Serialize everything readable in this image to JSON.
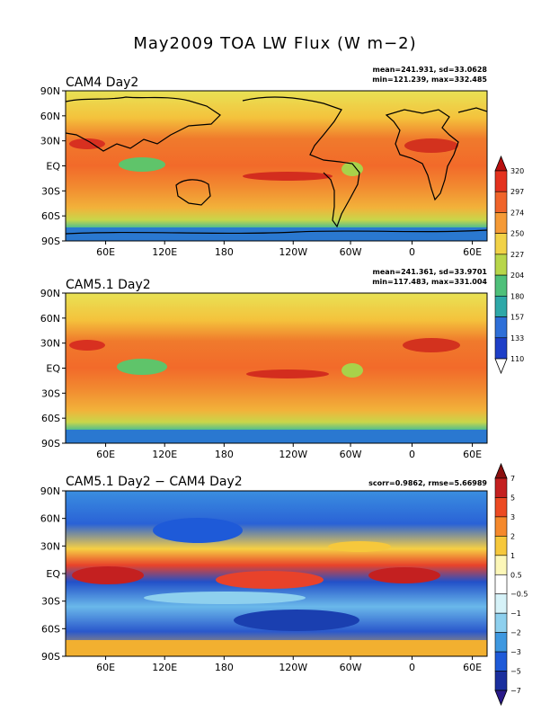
{
  "figure_title": "May2009 TOA LW Flux (W m−2)",
  "panels": [
    {
      "title": "CAM4 Day2",
      "stats_line1": "mean=241.931, sd=33.0628",
      "stats_line2": "min=121.239, max=332.485",
      "type": "field"
    },
    {
      "title": "CAM5.1 Day2",
      "stats_line1": "mean=241.361, sd=33.9701",
      "stats_line2": "min=117.483, max=331.004",
      "type": "field"
    },
    {
      "title": "CAM5.1 Day2 − CAM4 Day2",
      "stats_line1": "scorr=0.9862, rmse=5.66989",
      "stats_line2": "",
      "type": "difference"
    }
  ],
  "lat_labels": [
    "90N",
    "60N",
    "30N",
    "EQ",
    "30S",
    "60S",
    "90S"
  ],
  "lon_labels": [
    "60E",
    "120E",
    "180",
    "120W",
    "60W",
    "0",
    "60E"
  ],
  "colorbar_field": {
    "labels": [
      "320",
      "297",
      "274",
      "250",
      "227",
      "204",
      "180",
      "157",
      "133",
      "110"
    ],
    "colors": [
      "#b80f0f",
      "#e4321e",
      "#f0642a",
      "#f59a36",
      "#f1d247",
      "#b8d64a",
      "#4fc07a",
      "#2ea8a8",
      "#2e6fd8",
      "#1e3fc8",
      "#ffffff"
    ]
  },
  "colorbar_diff": {
    "labels": [
      "7",
      "5",
      "3",
      "2",
      "1",
      "0.5",
      "−0.5",
      "−1",
      "−2",
      "−3",
      "−5",
      "−7"
    ],
    "colors": [
      "#8b1010",
      "#c42020",
      "#ec4a22",
      "#f5892c",
      "#f6c83c",
      "#fcf7b8",
      "#ffffff",
      "#d6f2f8",
      "#8ed0ee",
      "#3e98e0",
      "#1e5ad8",
      "#1a2f9e",
      "#2a1a8a"
    ]
  }
}
